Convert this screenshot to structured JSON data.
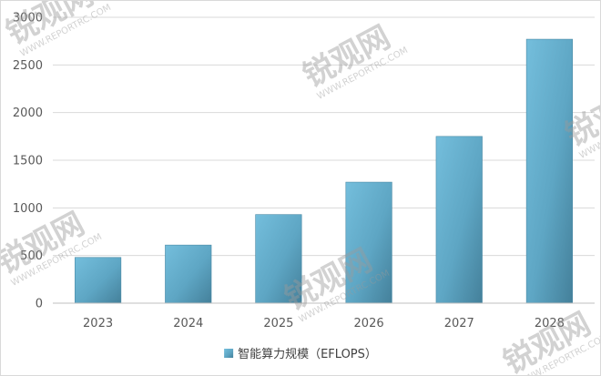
{
  "chart_data": {
    "type": "bar",
    "title": "",
    "xlabel": "",
    "ylabel": "",
    "categories": [
      "2023",
      "2024",
      "2025",
      "2026",
      "2027",
      "2028"
    ],
    "series": [
      {
        "name": "智能算力规模（EFLOPS）",
        "values": [
          480,
          610,
          930,
          1270,
          1750,
          2770
        ]
      }
    ],
    "ylim": [
      0,
      3000
    ],
    "yticks": [
      0,
      500,
      1000,
      1500,
      2000,
      2500,
      3000
    ],
    "grid": true,
    "legend_position": "bottom",
    "colors": {
      "bar_light": "#6fb8d6",
      "bar_dark": "#46849e",
      "grid": "#d9d9d9"
    }
  },
  "watermark": {
    "brand": "锐观网",
    "url": "WWW.REPORTRC.COM"
  }
}
